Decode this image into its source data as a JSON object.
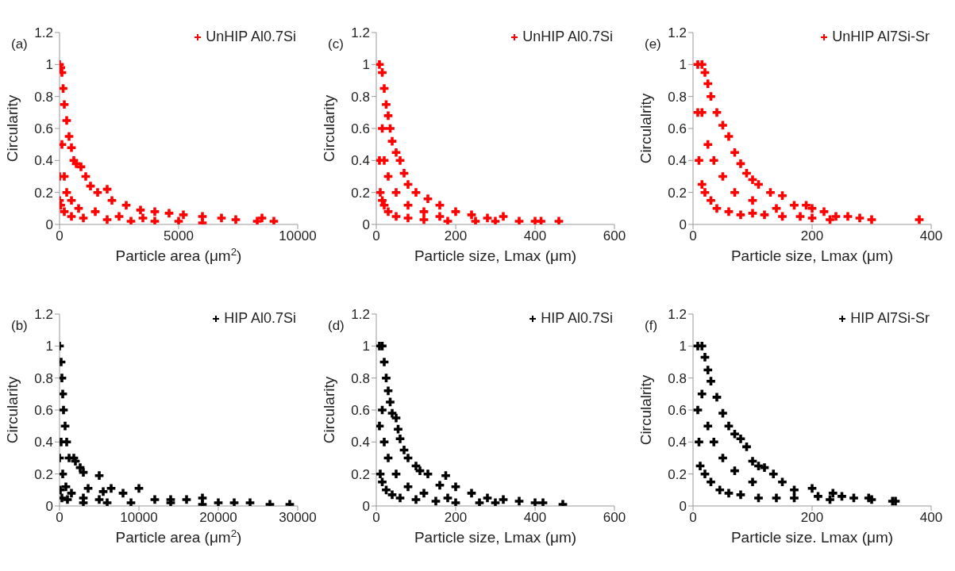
{
  "chart_data": [
    {
      "type": "scatter",
      "annotations": [
        "(a)"
      ],
      "xlabel": "Particle area (μm$^{2}$)",
      "ylabel": "Circularity",
      "xlim": [
        0,
        10000
      ],
      "xticks": [
        0,
        5000,
        10000
      ],
      "ylim": [
        0,
        1.2
      ],
      "yticks": [
        0,
        0.2,
        0.4,
        0.6,
        0.8,
        1,
        1.2
      ],
      "legend": "top right",
      "marker": "cross",
      "grid": false,
      "x": [
        0,
        50,
        100,
        150,
        200,
        300,
        400,
        500,
        600,
        700,
        900,
        1100,
        1300,
        1600,
        2000,
        2200,
        2800,
        3400,
        4000,
        4600,
        5200,
        6000,
        6800,
        7400,
        8500,
        8300,
        9000,
        0,
        0,
        50,
        200,
        500,
        1000,
        2000,
        3000,
        4000,
        5000,
        6000,
        100,
        200,
        300,
        500,
        800,
        1500,
        2500,
        3500
      ],
      "series": [
        {
          "name": "UnHIP Al0.7Si",
          "color": "#ff0000",
          "values": [
            1,
            0.98,
            0.95,
            0.85,
            0.75,
            0.65,
            0.55,
            0.48,
            0.4,
            0.38,
            0.36,
            0.3,
            0.24,
            0.2,
            0.22,
            0.15,
            0.12,
            0.09,
            0.08,
            0.07,
            0.06,
            0.05,
            0.04,
            0.03,
            0.04,
            0.02,
            0.02,
            0.3,
            0.15,
            0.12,
            0.08,
            0.05,
            0.04,
            0.03,
            0.02,
            0.02,
            0.02,
            0.01,
            0.5,
            0.3,
            0.2,
            0.15,
            0.1,
            0.08,
            0.05,
            0.04
          ]
        }
      ]
    },
    {
      "type": "scatter",
      "annotations": [
        "(c)"
      ],
      "xlabel": "Particle size, Lmax (μm)",
      "ylabel": "Circularity",
      "xlim": [
        0,
        600
      ],
      "xticks": [
        0,
        200,
        400,
        600
      ],
      "ylim": [
        0,
        1.2
      ],
      "yticks": [
        0,
        0.2,
        0.4,
        0.6,
        0.8,
        1,
        1.2
      ],
      "legend": "top right",
      "marker": "cross",
      "grid": false,
      "x": [
        8,
        15,
        20,
        25,
        30,
        35,
        40,
        50,
        60,
        70,
        80,
        100,
        130,
        160,
        200,
        240,
        280,
        320,
        360,
        400,
        415,
        460,
        8,
        10,
        15,
        20,
        30,
        50,
        80,
        120,
        180,
        250,
        300,
        15,
        20,
        30,
        50,
        80,
        120,
        160
      ],
      "series": [
        {
          "name": "UnHIP Al0.7Si",
          "color": "#ff0000",
          "values": [
            1,
            0.95,
            0.85,
            0.75,
            0.68,
            0.6,
            0.52,
            0.45,
            0.4,
            0.32,
            0.25,
            0.2,
            0.16,
            0.12,
            0.08,
            0.06,
            0.04,
            0.05,
            0.02,
            0.02,
            0.02,
            0.02,
            0.4,
            0.2,
            0.15,
            0.12,
            0.08,
            0.05,
            0.04,
            0.03,
            0.02,
            0.02,
            0.02,
            0.6,
            0.4,
            0.3,
            0.2,
            0.12,
            0.08,
            0.05
          ]
        }
      ]
    },
    {
      "type": "scatter",
      "annotations": [
        "(e)"
      ],
      "xlabel": "Particle size, Lmax (μm)",
      "ylabel": "Circulalrity",
      "xlim": [
        0,
        400
      ],
      "xticks": [
        0,
        200,
        400
      ],
      "ylim": [
        0,
        1.2
      ],
      "yticks": [
        0,
        0.2,
        0.4,
        0.6,
        0.8,
        1,
        1.2
      ],
      "legend": "top right",
      "marker": "cross",
      "grid": false,
      "x": [
        8,
        15,
        20,
        25,
        30,
        40,
        50,
        60,
        70,
        80,
        90,
        100,
        110,
        130,
        150,
        170,
        190,
        200,
        220,
        240,
        260,
        280,
        300,
        380,
        8,
        10,
        15,
        20,
        30,
        40,
        60,
        80,
        100,
        120,
        150,
        180,
        200,
        230,
        15,
        25,
        35,
        50,
        70,
        100,
        140
      ],
      "series": [
        {
          "name": "UnHIP Al7Si-Sr",
          "color": "#ff0000",
          "values": [
            1,
            1,
            0.95,
            0.88,
            0.8,
            0.7,
            0.62,
            0.55,
            0.45,
            0.38,
            0.32,
            0.28,
            0.25,
            0.2,
            0.18,
            0.12,
            0.12,
            0.1,
            0.08,
            0.05,
            0.05,
            0.04,
            0.03,
            0.03,
            0.7,
            0.4,
            0.25,
            0.2,
            0.15,
            0.1,
            0.08,
            0.06,
            0.07,
            0.06,
            0.05,
            0.05,
            0.04,
            0.03,
            0.7,
            0.5,
            0.4,
            0.3,
            0.2,
            0.15,
            0.1
          ]
        }
      ]
    },
    {
      "type": "scatter",
      "annotations": [
        "(b)"
      ],
      "xlabel": "Particle area (μm$^{2}$)",
      "ylabel": "Circularity",
      "xlim": [
        0,
        30000
      ],
      "xticks": [
        0,
        10000,
        20000,
        30000
      ],
      "ylim": [
        0,
        1.2
      ],
      "yticks": [
        0,
        0.2,
        0.4,
        0.6,
        0.8,
        1,
        1.2
      ],
      "legend": "top right",
      "marker": "cross",
      "grid": false,
      "x": [
        0,
        200,
        300,
        400,
        500,
        700,
        900,
        1200,
        1800,
        2000,
        2600,
        3000,
        3600,
        5000,
        5500,
        6500,
        8000,
        10000,
        12000,
        14000,
        16000,
        18000,
        20000,
        22000,
        24000,
        26500,
        29000,
        0,
        100,
        300,
        1000,
        3000,
        6000,
        9000,
        14000,
        18000,
        200,
        400,
        800,
        1500,
        3000,
        5000
      ],
      "series": [
        {
          "name": "HIP Al0.7Si",
          "color": "#000000",
          "values": [
            1,
            0.9,
            0.8,
            0.7,
            0.6,
            0.5,
            0.4,
            0.3,
            0.3,
            0.28,
            0.24,
            0.21,
            0.11,
            0.19,
            0.09,
            0.11,
            0.08,
            0.11,
            0.04,
            0.04,
            0.04,
            0.05,
            0.02,
            0.02,
            0.02,
            0.01,
            0.01,
            0.3,
            0.1,
            0.05,
            0.04,
            0.02,
            0.02,
            0.02,
            0.02,
            0.01,
            0.4,
            0.2,
            0.12,
            0.08,
            0.05,
            0.04
          ]
        }
      ]
    },
    {
      "type": "scatter",
      "annotations": [
        "(d)"
      ],
      "xlabel": "Particle size, Lmax (μm)",
      "ylabel": "Circularity",
      "xlim": [
        0,
        600
      ],
      "xticks": [
        0,
        200,
        400,
        600
      ],
      "ylim": [
        0,
        1.2
      ],
      "yticks": [
        0,
        0.2,
        0.4,
        0.6,
        0.8,
        1,
        1.2
      ],
      "legend": "top right",
      "marker": "cross",
      "grid": false,
      "x": [
        8,
        15,
        20,
        25,
        30,
        35,
        40,
        50,
        55,
        60,
        70,
        80,
        100,
        110,
        130,
        175,
        160,
        200,
        240,
        280,
        320,
        360,
        400,
        420,
        470,
        8,
        10,
        15,
        25,
        40,
        60,
        100,
        150,
        200,
        260,
        300,
        15,
        20,
        30,
        50,
        80,
        120,
        180
      ],
      "series": [
        {
          "name": "HIP Al0.7Si",
          "color": "#000000",
          "values": [
            1,
            1,
            0.9,
            0.8,
            0.72,
            0.65,
            0.58,
            0.55,
            0.48,
            0.42,
            0.35,
            0.3,
            0.25,
            0.22,
            0.2,
            0.19,
            0.13,
            0.12,
            0.08,
            0.05,
            0.04,
            0.03,
            0.02,
            0.02,
            0.01,
            0.5,
            0.2,
            0.15,
            0.1,
            0.07,
            0.05,
            0.04,
            0.03,
            0.02,
            0.02,
            0.02,
            0.6,
            0.4,
            0.3,
            0.2,
            0.12,
            0.08,
            0.05
          ]
        }
      ]
    },
    {
      "type": "scatter",
      "annotations": [
        "(f)"
      ],
      "xlabel": "Particle size. Lmax (μm)",
      "ylabel": "Circulalrity",
      "xlim": [
        0,
        400
      ],
      "xticks": [
        0,
        200,
        400
      ],
      "ylim": [
        0,
        1.2
      ],
      "yticks": [
        0,
        0.2,
        0.4,
        0.6,
        0.8,
        1,
        1.2
      ],
      "legend": "top right",
      "marker": "cross",
      "grid": false,
      "x": [
        8,
        15,
        20,
        25,
        30,
        40,
        50,
        60,
        70,
        80,
        90,
        100,
        110,
        120,
        135,
        150,
        170,
        200,
        210,
        235,
        250,
        270,
        295,
        300,
        335,
        340,
        8,
        10,
        12,
        20,
        30,
        45,
        60,
        80,
        110,
        140,
        170,
        230,
        15,
        25,
        35,
        50,
        70,
        100
      ],
      "series": [
        {
          "name": "HIP Al7Si-Sr",
          "color": "#000000",
          "values": [
            1,
            1,
            0.93,
            0.85,
            0.78,
            0.68,
            0.58,
            0.5,
            0.45,
            0.42,
            0.37,
            0.28,
            0.25,
            0.24,
            0.2,
            0.15,
            0.1,
            0.11,
            0.06,
            0.08,
            0.06,
            0.05,
            0.05,
            0.04,
            0.03,
            0.03,
            0.6,
            0.4,
            0.25,
            0.2,
            0.15,
            0.1,
            0.08,
            0.07,
            0.05,
            0.05,
            0.05,
            0.04,
            0.7,
            0.5,
            0.4,
            0.3,
            0.22,
            0.15
          ]
        }
      ]
    }
  ]
}
